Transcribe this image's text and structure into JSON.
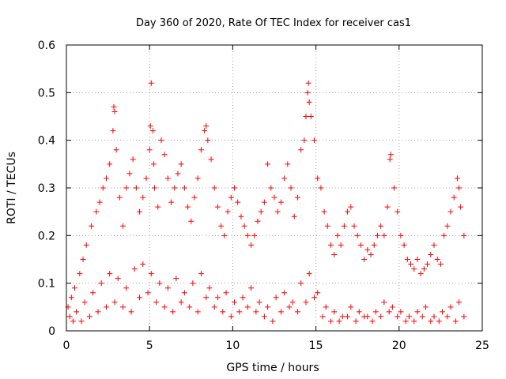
{
  "chart_data": {
    "type": "scatter",
    "title": "Day 360 of 2020, Rate Of TEC Index for receiver cas1",
    "xlabel": "GPS time / hours",
    "ylabel": "ROTI / TECUs",
    "xlim": [
      0,
      25
    ],
    "ylim": [
      0,
      0.6
    ],
    "xticks": [
      {
        "value": 0,
        "label": "0"
      },
      {
        "value": 5,
        "label": "5"
      },
      {
        "value": 10,
        "label": "10"
      },
      {
        "value": 15,
        "label": "15"
      },
      {
        "value": 20,
        "label": "20"
      },
      {
        "value": 25,
        "label": "25"
      }
    ],
    "yticks": [
      {
        "value": 0,
        "label": "0"
      },
      {
        "value": 0.1,
        "label": "0.1"
      },
      {
        "value": 0.2,
        "label": "0.2"
      },
      {
        "value": 0.3,
        "label": "0.3"
      },
      {
        "value": 0.4,
        "label": "0.4"
      },
      {
        "value": 0.5,
        "label": "0.5"
      },
      {
        "value": 0.6,
        "label": "0.6"
      }
    ],
    "grid": true,
    "marker": "plus",
    "color": "#ff0000",
    "x": [
      0.1,
      0.3,
      0.5,
      0.8,
      1.0,
      1.2,
      1.5,
      1.8,
      2.0,
      2.2,
      2.4,
      2.6,
      2.8,
      2.85,
      2.9,
      3.0,
      3.2,
      3.4,
      3.6,
      3.8,
      4.0,
      4.2,
      4.4,
      4.6,
      4.8,
      5.0,
      5.05,
      5.1,
      5.2,
      5.25,
      5.3,
      5.5,
      5.7,
      5.9,
      6.1,
      6.3,
      6.5,
      6.7,
      6.9,
      7.1,
      7.3,
      7.5,
      7.7,
      7.9,
      8.1,
      8.3,
      8.4,
      8.5,
      8.7,
      8.9,
      9.1,
      9.3,
      9.5,
      9.7,
      9.9,
      10.1,
      10.3,
      10.5,
      10.7,
      10.9,
      11.1,
      11.3,
      11.5,
      11.7,
      11.9,
      12.1,
      12.3,
      12.5,
      12.7,
      12.9,
      13.1,
      13.3,
      13.5,
      13.7,
      13.9,
      14.1,
      14.3,
      14.4,
      14.5,
      14.55,
      14.6,
      14.7,
      14.9,
      15.1,
      15.3,
      15.5,
      15.7,
      15.9,
      16.1,
      16.3,
      16.5,
      16.7,
      16.9,
      17.1,
      17.3,
      17.5,
      17.7,
      17.9,
      18.1,
      18.3,
      18.5,
      18.7,
      18.9,
      19.1,
      19.3,
      19.45,
      19.5,
      19.7,
      19.9,
      20.1,
      20.3,
      20.5,
      20.7,
      20.9,
      21.1,
      21.3,
      21.5,
      21.7,
      21.9,
      22.1,
      22.3,
      22.5,
      22.7,
      22.9,
      23.1,
      23.3,
      23.5,
      23.6,
      23.7,
      23.9,
      0.2,
      0.6,
      1.1,
      1.6,
      2.1,
      2.6,
      3.1,
      3.6,
      4.1,
      4.6,
      5.1,
      5.6,
      6.1,
      6.6,
      7.1,
      7.6,
      8.1,
      8.6,
      9.1,
      9.6,
      10.1,
      10.6,
      11.1,
      11.6,
      12.1,
      12.6,
      13.1,
      13.6,
      14.1,
      14.6,
      15.1,
      15.6,
      16.1,
      16.6,
      17.1,
      17.6,
      18.1,
      18.6,
      19.1,
      19.6,
      20.1,
      20.6,
      21.1,
      21.6,
      22.1,
      22.6,
      23.1,
      23.6,
      0.4,
      0.9,
      1.4,
      1.9,
      2.4,
      2.9,
      3.4,
      3.9,
      4.4,
      4.9,
      5.4,
      5.9,
      6.4,
      6.9,
      7.4,
      7.9,
      8.4,
      8.9,
      9.4,
      9.9,
      10.4,
      10.9,
      11.4,
      11.9,
      12.4,
      12.9,
      13.4,
      13.9,
      14.4,
      14.9,
      15.4,
      15.9,
      16.4,
      16.9,
      17.4,
      17.9,
      18.4,
      18.9,
      19.4,
      19.9,
      20.4,
      20.9,
      21.4,
      21.9,
      22.4,
      22.9,
      23.4,
      23.9
    ],
    "y": [
      0.05,
      0.07,
      0.09,
      0.12,
      0.15,
      0.18,
      0.22,
      0.25,
      0.27,
      0.3,
      0.32,
      0.35,
      0.42,
      0.47,
      0.46,
      0.38,
      0.28,
      0.22,
      0.3,
      0.33,
      0.36,
      0.3,
      0.25,
      0.28,
      0.32,
      0.38,
      0.43,
      0.52,
      0.42,
      0.35,
      0.3,
      0.26,
      0.4,
      0.37,
      0.32,
      0.27,
      0.3,
      0.33,
      0.35,
      0.3,
      0.26,
      0.23,
      0.28,
      0.32,
      0.38,
      0.42,
      0.43,
      0.4,
      0.36,
      0.3,
      0.26,
      0.22,
      0.2,
      0.25,
      0.28,
      0.3,
      0.27,
      0.24,
      0.22,
      0.2,
      0.18,
      0.2,
      0.23,
      0.25,
      0.27,
      0.35,
      0.3,
      0.28,
      0.25,
      0.27,
      0.32,
      0.35,
      0.3,
      0.24,
      0.28,
      0.38,
      0.4,
      0.45,
      0.5,
      0.52,
      0.48,
      0.45,
      0.4,
      0.32,
      0.3,
      0.25,
      0.22,
      0.18,
      0.16,
      0.2,
      0.18,
      0.22,
      0.25,
      0.26,
      0.22,
      0.2,
      0.18,
      0.15,
      0.17,
      0.16,
      0.18,
      0.2,
      0.22,
      0.2,
      0.26,
      0.36,
      0.37,
      0.3,
      0.25,
      0.2,
      0.18,
      0.15,
      0.14,
      0.13,
      0.15,
      0.12,
      0.13,
      0.14,
      0.16,
      0.18,
      0.15,
      0.14,
      0.2,
      0.22,
      0.25,
      0.28,
      0.32,
      0.3,
      0.26,
      0.2,
      0.03,
      0.04,
      0.06,
      0.08,
      0.1,
      0.12,
      0.11,
      0.09,
      0.13,
      0.14,
      0.12,
      0.1,
      0.09,
      0.11,
      0.08,
      0.1,
      0.12,
      0.09,
      0.07,
      0.08,
      0.06,
      0.07,
      0.09,
      0.06,
      0.05,
      0.07,
      0.08,
      0.06,
      0.1,
      0.12,
      0.08,
      0.05,
      0.04,
      0.03,
      0.05,
      0.04,
      0.03,
      0.04,
      0.06,
      0.05,
      0.04,
      0.03,
      0.04,
      0.05,
      0.03,
      0.04,
      0.05,
      0.06,
      0.02,
      0.02,
      0.03,
      0.04,
      0.05,
      0.06,
      0.05,
      0.04,
      0.07,
      0.08,
      0.06,
      0.05,
      0.04,
      0.06,
      0.05,
      0.04,
      0.07,
      0.05,
      0.04,
      0.03,
      0.04,
      0.05,
      0.04,
      0.03,
      0.02,
      0.04,
      0.05,
      0.04,
      0.06,
      0.07,
      0.03,
      0.02,
      0.02,
      0.03,
      0.02,
      0.03,
      0.02,
      0.03,
      0.04,
      0.03,
      0.02,
      0.02,
      0.03,
      0.02,
      0.02,
      0.03,
      0.02,
      0.03
    ]
  }
}
